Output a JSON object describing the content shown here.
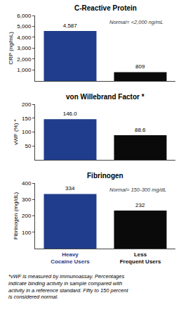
{
  "chart_data": [
    {
      "type": "bar",
      "title": "C-Reactive Protein",
      "ylabel": "CRP (ng/mL)",
      "categories": [
        "Heavy\nCocaine Users",
        "Less\nFrequent Users"
      ],
      "values": [
        4587,
        809
      ],
      "value_labels": [
        "4,587",
        "809"
      ],
      "colors": [
        "#1f3d8c",
        "#0a0a0a"
      ],
      "data_labels": true,
      "ylim": [
        0,
        6000
      ],
      "yticks": [
        {
          "value": 1000,
          "label": "1,000"
        },
        {
          "value": 2000,
          "label": "2,000"
        },
        {
          "value": 3000,
          "label": "3,000"
        },
        {
          "value": 4000,
          "label": "4,000"
        },
        {
          "value": 5000,
          "label": "5,000"
        },
        {
          "value": 6000,
          "label": "6,000"
        }
      ],
      "annotation": "Normal= <2,000 ng/mL",
      "grid": false,
      "tick_labels": "y"
    },
    {
      "type": "bar",
      "title": "von Willebrand Factor *",
      "ylabel": "vWF (%) *",
      "categories": [
        "Heavy\nCocaine Users",
        "Less\nFrequent Users"
      ],
      "values": [
        146.0,
        88.6
      ],
      "value_labels": [
        "146.0",
        "88.6"
      ],
      "colors": [
        "#1f3d8c",
        "#0a0a0a"
      ],
      "data_labels": true,
      "ylim": [
        0,
        200
      ],
      "yticks": [
        50,
        100,
        150,
        200
      ],
      "grid": false,
      "tick_labels": "y"
    },
    {
      "type": "bar",
      "title": "Fibrinogen",
      "ylabel": "Fibrinogen (mg/dL)",
      "categories": [
        "Heavy\nCocaine Users",
        "Less\nFrequent Users"
      ],
      "values": [
        334,
        232
      ],
      "value_labels": [
        "334",
        "232"
      ],
      "colors": [
        "#1f3d8c",
        "#0a0a0a"
      ],
      "data_labels": true,
      "ylim": [
        0,
        400
      ],
      "yticks": [
        100,
        200,
        300,
        400
      ],
      "annotation": "Normal= 150-300 mg/dL",
      "grid": false
    }
  ],
  "footnote": "*vWF is measured by immunoassay. Percentages\nindicate binding activity in sample compared with\nactivity in a reference standard. Fifty to 150 percent\nis considered normal."
}
